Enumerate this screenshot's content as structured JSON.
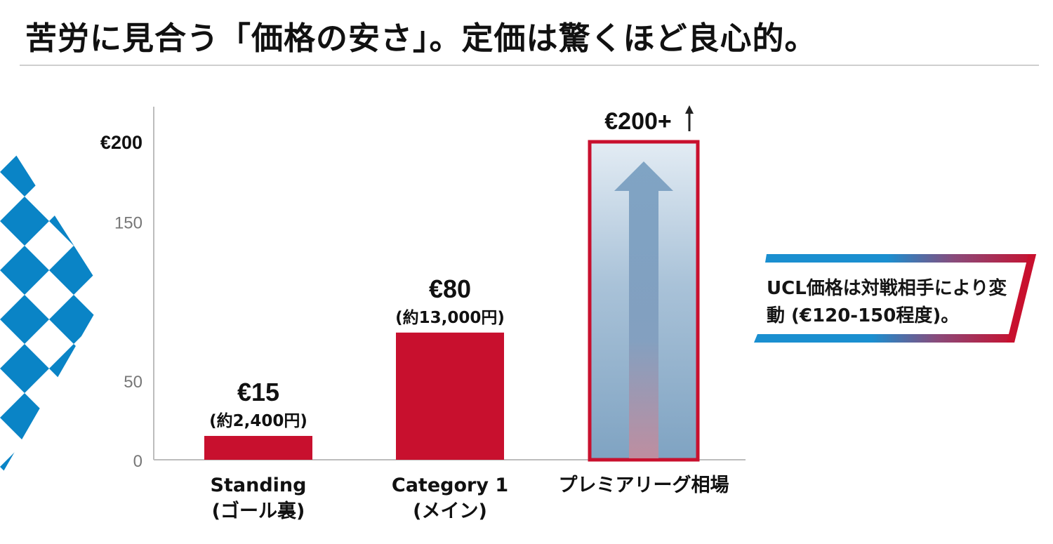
{
  "title": "苦労に見合う「価格の安さ」。定価は驚くほど良心的。",
  "chart_data": {
    "type": "bar",
    "categories": [
      [
        "Standing",
        "(ゴール裏)"
      ],
      [
        "Category 1",
        "(メイン)"
      ],
      [
        "プレミアリーグ相場"
      ]
    ],
    "values": [
      15,
      80,
      200
    ],
    "value_labels": [
      "€15",
      "€80",
      "€200+"
    ],
    "sub_labels": [
      "(約2,400円)",
      "(約13,000円)",
      ""
    ],
    "y_ticks": [
      "0",
      "50",
      "150",
      "€200"
    ],
    "y_tick_values": [
      0,
      50,
      150,
      200
    ],
    "ylim": [
      0,
      220
    ],
    "bar_colors": [
      "#c8102e",
      "#c8102e",
      "#c8102e"
    ],
    "open_ended_last_bar": true,
    "annotation": "UCL価格は対戦相手により変動 (€120-150程度)。"
  },
  "colors": {
    "accent_red": "#c8102e",
    "diamond_blue": "#0a84c6",
    "gradient_blue": "#7fa6c6"
  }
}
